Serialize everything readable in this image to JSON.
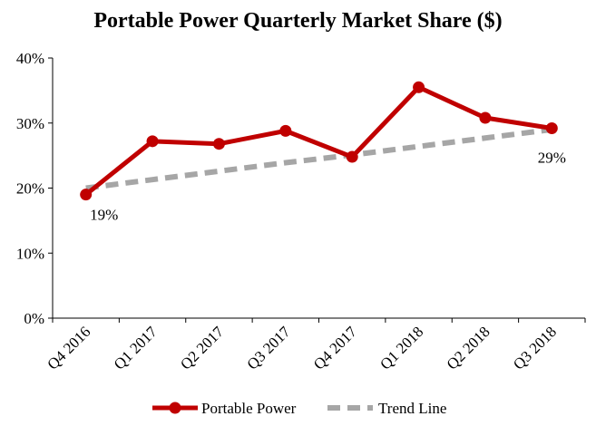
{
  "chart_data": {
    "type": "line",
    "title": "Portable Power Quarterly Market Share ($)",
    "categories": [
      "Q4 2016",
      "Q1 2017",
      "Q2 2017",
      "Q3 2017",
      "Q4 2017",
      "Q1 2018",
      "Q2 2018",
      "Q3 2018"
    ],
    "series": [
      {
        "name": "Portable Power",
        "values": [
          19.0,
          27.2,
          26.8,
          28.8,
          24.8,
          35.5,
          30.8,
          29.2
        ],
        "color": "#c00000"
      },
      {
        "name": "Trend Line",
        "values": [
          20.0,
          21.3,
          22.6,
          23.9,
          25.1,
          26.4,
          27.7,
          29.0
        ],
        "color": "#a6a6a6",
        "dashed": true
      }
    ],
    "y_ticks": [
      "0%",
      "10%",
      "20%",
      "30%",
      "40%"
    ],
    "ylim": [
      0,
      40
    ],
    "data_labels": [
      {
        "series": 0,
        "index": 0,
        "text": "19%"
      },
      {
        "series": 0,
        "index": 7,
        "text": "29%"
      }
    ],
    "grid": false,
    "legend": "bottom"
  }
}
